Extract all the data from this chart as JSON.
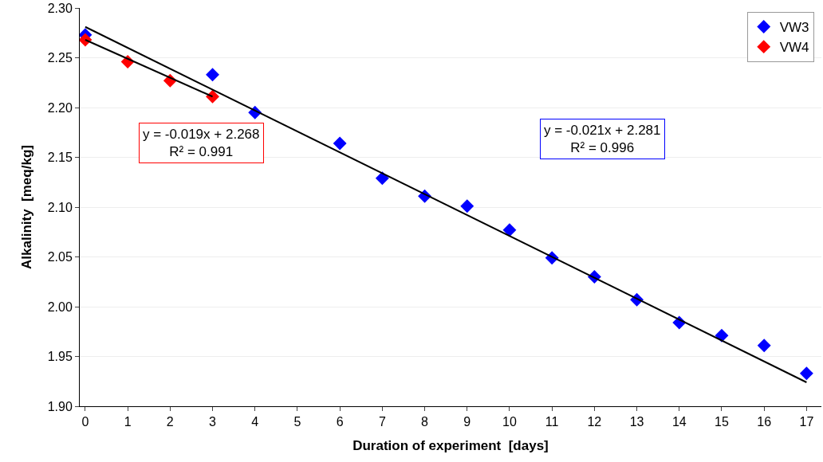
{
  "chart_data": {
    "type": "scatter",
    "xlabel": "Duration of experiment  [days]",
    "ylabel": "Alkalinity  [meq/kg]",
    "xlim": [
      -0.13,
      17.35
    ],
    "xticks": [
      0,
      1,
      2,
      3,
      4,
      5,
      6,
      7,
      8,
      9,
      10,
      11,
      12,
      13,
      14,
      15,
      16,
      17
    ],
    "ylim": [
      1.9,
      2.3
    ],
    "yticks": [
      {
        "value": 1.9,
        "label": "1.90"
      },
      {
        "value": 1.95,
        "label": "1.95"
      },
      {
        "value": 2.0,
        "label": "2.00"
      },
      {
        "value": 2.05,
        "label": "2.05"
      },
      {
        "value": 2.1,
        "label": "2.10"
      },
      {
        "value": 2.15,
        "label": "2.15"
      },
      {
        "value": 2.2,
        "label": "2.20"
      },
      {
        "value": 2.25,
        "label": "2.25"
      },
      {
        "value": 2.3,
        "label": "2.30"
      }
    ],
    "grid": "y",
    "legend": "top right",
    "marker": "diamond",
    "series": [
      {
        "name": "VW3",
        "color": "#0000ff",
        "x": [
          0,
          3,
          4,
          6,
          7,
          8,
          9,
          10,
          11,
          12,
          13,
          14,
          15,
          16,
          17
        ],
        "values": [
          2.273,
          2.233,
          2.195,
          2.164,
          2.129,
          2.111,
          2.101,
          2.077,
          2.049,
          2.03,
          2.007,
          1.984,
          1.971,
          1.961,
          1.933
        ]
      },
      {
        "name": "VW4",
        "color": "#ff0000",
        "x": [
          0,
          1,
          2,
          3
        ],
        "values": [
          2.268,
          2.246,
          2.227,
          2.211
        ]
      },
      {
        "type": "line",
        "color": "#000000",
        "marker": "none",
        "x": [
          0,
          17
        ],
        "values": [
          2.281,
          1.924
        ]
      },
      {
        "type": "line",
        "color": "#000000",
        "marker": "none",
        "x": [
          0,
          3
        ],
        "values": [
          2.268,
          2.211
        ]
      }
    ],
    "annotations": [
      "y = -0.019x + 2.268\nR² = 0.991",
      "y = -0.021x + 2.281\nR² = 0.996"
    ]
  }
}
